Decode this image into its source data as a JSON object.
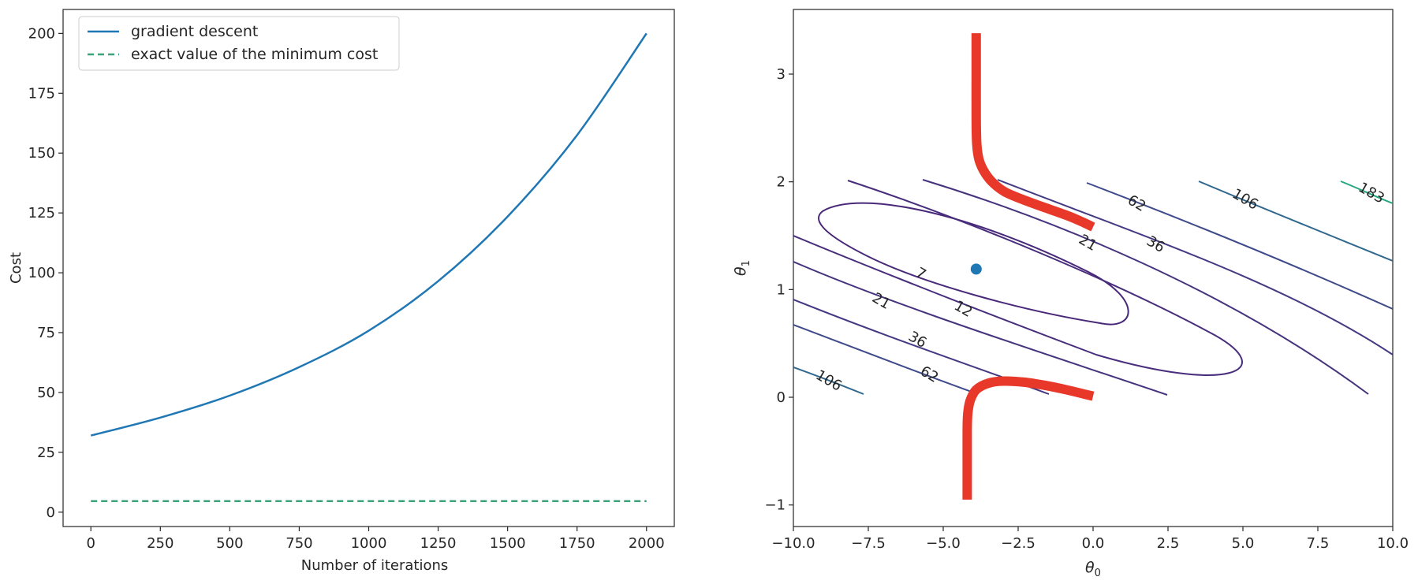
{
  "chart_data": [
    {
      "type": "line",
      "xlabel": "Number of iterations",
      "ylabel": "Cost",
      "xlim": [
        -100,
        2100
      ],
      "ylim": [
        -6,
        210
      ],
      "x_ticks": [
        0,
        250,
        500,
        750,
        1000,
        1250,
        1500,
        1750,
        2000
      ],
      "x_tick_labels": [
        "0",
        "250",
        "500",
        "750",
        "1000",
        "1250",
        "1500",
        "1750",
        "2000"
      ],
      "y_ticks": [
        0,
        25,
        50,
        75,
        100,
        125,
        150,
        175,
        200
      ],
      "y_tick_labels": [
        "0",
        "25",
        "50",
        "75",
        "100",
        "125",
        "150",
        "175",
        "200"
      ],
      "grid": false,
      "legend_position": "top-left",
      "series": [
        {
          "name": "gradient descent",
          "style": "solid",
          "color": "#1f77b4",
          "x": [
            0,
            250,
            500,
            750,
            1000,
            1250,
            1500,
            1750,
            2000
          ],
          "y": [
            32,
            39.5,
            48.7,
            60.6,
            75.8,
            96.5,
            123.5,
            157.5,
            200
          ]
        },
        {
          "name": "exact value of the minimum cost",
          "style": "dashed",
          "color": "#3ca37a",
          "x": [
            0,
            2000
          ],
          "y": [
            4.6,
            4.6
          ]
        }
      ]
    },
    {
      "type": "contour",
      "xlabel": "θ0",
      "ylabel": "θ1",
      "xlim": [
        -10,
        10
      ],
      "ylim": [
        -1.2,
        3.6
      ],
      "x_ticks": [
        -10,
        -7.5,
        -5,
        -2.5,
        0,
        2.5,
        5,
        7.5,
        10
      ],
      "x_tick_labels": [
        "−10.0",
        "−7.5",
        "−5.0",
        "−2.5",
        "0.0",
        "2.5",
        "5.0",
        "7.5",
        "10.0"
      ],
      "y_ticks": [
        -1,
        0,
        1,
        2,
        3
      ],
      "y_tick_labels": [
        "−1",
        "0",
        "1",
        "2",
        "3"
      ],
      "grid": false,
      "minimum_point": {
        "x": -3.9,
        "y": 1.19,
        "color": "#1f77b4"
      },
      "contour_levels": [
        {
          "label": "7",
          "color": "#482878"
        },
        {
          "label": "12",
          "color": "#472d7b"
        },
        {
          "label": "21",
          "color": "#46337e"
        },
        {
          "label": "36",
          "color": "#443a83"
        },
        {
          "label": "62",
          "color": "#3e4a89"
        },
        {
          "label": "106",
          "color": "#31688e"
        },
        {
          "label": "183",
          "color": "#26a581"
        }
      ],
      "paths": [
        {
          "color": "#e8382a",
          "x": [
            -3.9,
            -3.9,
            -3.9,
            -3.88,
            -3.8,
            -3.6,
            -3.3,
            -2.9,
            -2.2,
            -1.5,
            -0.8,
            -0.3,
            0.0
          ],
          "y": [
            3.38,
            3.0,
            2.6,
            2.35,
            2.2,
            2.08,
            1.98,
            1.9,
            1.82,
            1.75,
            1.68,
            1.62,
            1.58
          ]
        },
        {
          "color": "#e8382a",
          "x": [
            -4.2,
            -4.2,
            -4.2,
            -4.18,
            -4.1,
            -3.9,
            -3.5,
            -3.0,
            -2.3,
            -1.6,
            -0.9,
            -0.3,
            0.0
          ],
          "y": [
            -0.95,
            -0.6,
            -0.3,
            -0.15,
            -0.03,
            0.07,
            0.13,
            0.15,
            0.14,
            0.11,
            0.07,
            0.03,
            0.01
          ]
        }
      ]
    }
  ]
}
